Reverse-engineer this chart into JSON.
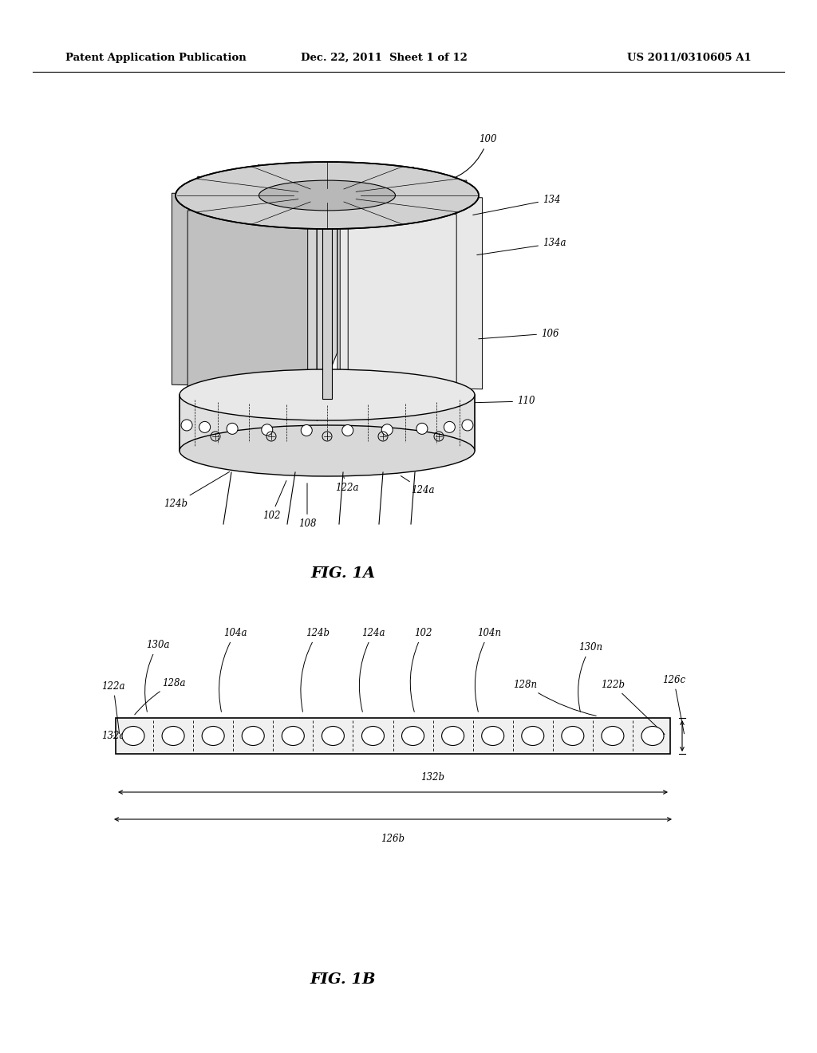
{
  "bg_color": "#ffffff",
  "line_color": "#000000",
  "header_left": "Patent Application Publication",
  "header_center": "Dec. 22, 2011  Sheet 1 of 12",
  "header_right": "US 2011/0310605 A1",
  "fig1a_label": "FIG. 1A",
  "fig1b_label": "FIG. 1B",
  "font_size_header": 9.5,
  "font_size_label": 13,
  "font_size_annot": 8.5
}
